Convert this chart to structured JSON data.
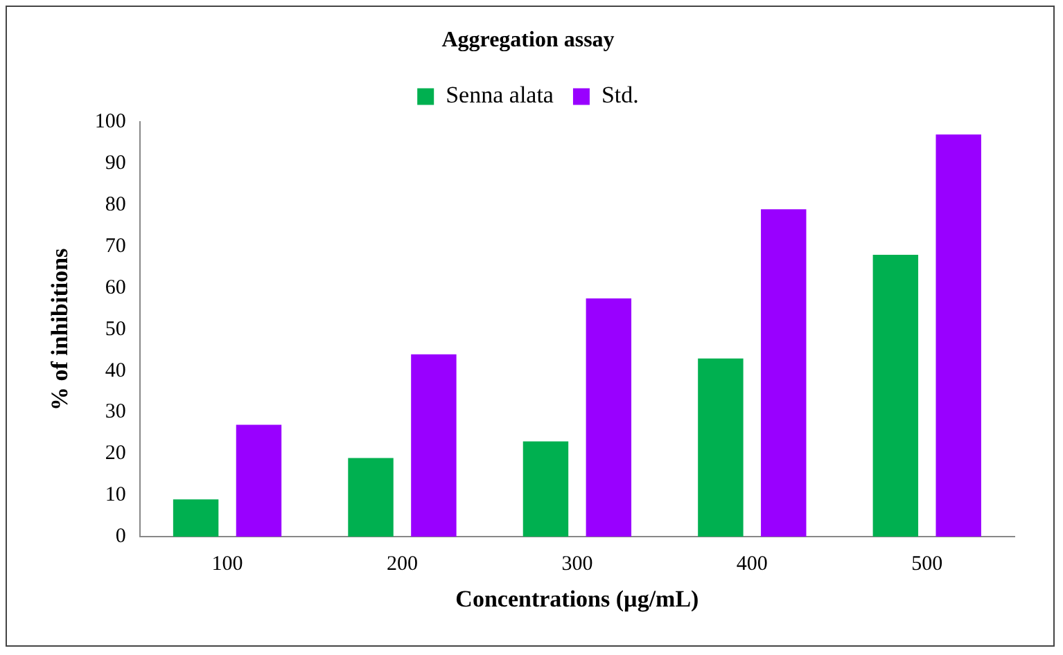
{
  "chart_data": {
    "type": "bar",
    "title": "Aggregation assay",
    "xlabel": "Concentrations (µg/mL)",
    "ylabel": "% of inhibitions",
    "categories": [
      "100",
      "200",
      "300",
      "400",
      "500"
    ],
    "series": [
      {
        "name": "Senna alata",
        "color": "#00b050",
        "values": [
          9,
          19,
          23,
          43,
          68
        ]
      },
      {
        "name": "Std.",
        "color": "#9900ff",
        "values": [
          27,
          44,
          57.5,
          79,
          97
        ]
      }
    ],
    "ylim": [
      0,
      100
    ],
    "yticks": [
      0,
      10,
      20,
      30,
      40,
      50,
      60,
      70,
      80,
      90,
      100
    ],
    "grid": false,
    "legend": "top"
  }
}
